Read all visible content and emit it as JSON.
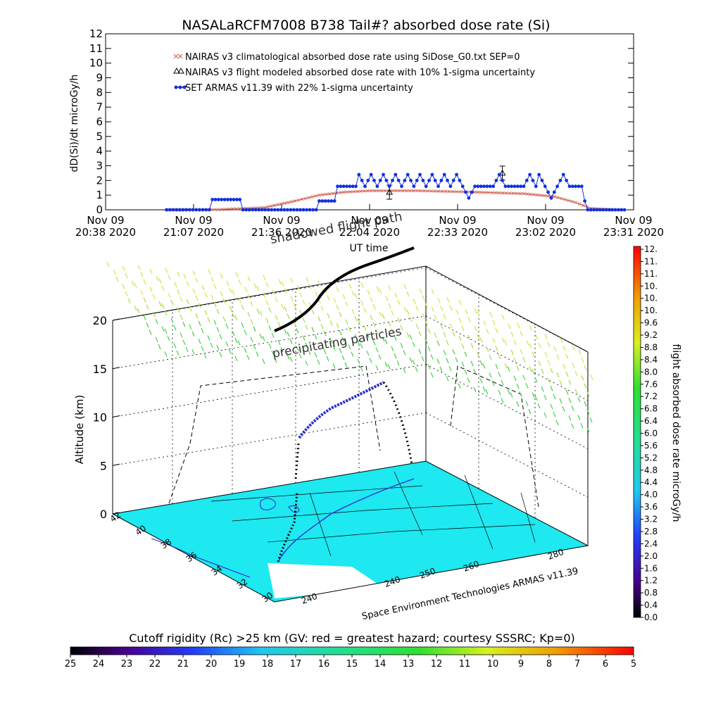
{
  "chart_data": [
    {
      "type": "line",
      "title": "NASALaRCFM7008  B738 Tail#? absorbed dose rate (Si)",
      "xlabel": "UT time",
      "ylabel": "dD(Si)/dt microGy/h",
      "ylim": [
        0,
        12
      ],
      "yticks": [
        "0",
        "1",
        "2",
        "3",
        "4",
        "5",
        "6",
        "7",
        "8",
        "9",
        "10",
        "11",
        "12"
      ],
      "xticks": [
        {
          "date": "Nov 09",
          "time": "20:38 2020"
        },
        {
          "date": "Nov 09",
          "time": "21:07 2020"
        },
        {
          "date": "Nov 09",
          "time": "21:36 2020"
        },
        {
          "date": "Nov 09",
          "time": "22:04 2020"
        },
        {
          "date": "Nov 09",
          "time": "22:33 2020"
        },
        {
          "date": "Nov 09",
          "time": "23:02 2020"
        },
        {
          "date": "Nov 09",
          "time": "23:31 2020"
        }
      ],
      "legend": [
        {
          "marker": "x",
          "color": "#d06050",
          "text": "NAIRAS v3 climatological absorbed dose rate using SiDose_G0.txt SEP=0"
        },
        {
          "marker": "triangle",
          "color": "#000000",
          "text": "NAIRAS v3 flight modeled absorbed dose rate with 10% 1-sigma uncertainty"
        },
        {
          "marker": "dot",
          "color": "#1030e0",
          "text": "SET ARMAS v11.39 with 22% 1-sigma uncertainty"
        }
      ],
      "series": [
        {
          "name": "NAIRAS v3 climatological absorbed dose rate using SiDose_G0.txt SEP=0",
          "color": "#d06050",
          "points": [
            [
              "20:58",
              0.0
            ],
            [
              "21:15",
              0.02
            ],
            [
              "21:30",
              0.15
            ],
            [
              "21:40",
              0.6
            ],
            [
              "21:48",
              1.0
            ],
            [
              "21:56",
              1.2
            ],
            [
              "22:05",
              1.3
            ],
            [
              "22:20",
              1.3
            ],
            [
              "22:40",
              1.2
            ],
            [
              "22:55",
              1.1
            ],
            [
              "23:05",
              0.9
            ],
            [
              "23:12",
              0.5
            ],
            [
              "23:17",
              0.1
            ],
            [
              "23:25",
              0.0
            ]
          ]
        },
        {
          "name": "NAIRAS v3 flight modeled absorbed dose rate with 10% 1-sigma uncertainty",
          "color": "#000000",
          "points": [
            [
              "22:11",
              1.2
            ],
            [
              "22:48",
              2.5
            ]
          ]
        },
        {
          "name": "SET ARMAS v11.39 with 22% 1-sigma uncertainty",
          "color": "#1030e0",
          "points": [
            [
              "20:58",
              0.0
            ],
            [
              "21:12",
              0.0
            ],
            [
              "21:13",
              0.7
            ],
            [
              "21:22",
              0.7
            ],
            [
              "21:23",
              0.0
            ],
            [
              "21:47",
              0.0
            ],
            [
              "21:48",
              0.6
            ],
            [
              "21:53",
              0.6
            ],
            [
              "21:54",
              1.6
            ],
            [
              "22:00",
              1.6
            ],
            [
              "22:01",
              2.4
            ],
            [
              "22:03",
              1.6
            ],
            [
              "22:05",
              2.4
            ],
            [
              "22:07",
              1.6
            ],
            [
              "22:09",
              2.4
            ],
            [
              "22:11",
              1.6
            ],
            [
              "22:13",
              2.4
            ],
            [
              "22:15",
              1.6
            ],
            [
              "22:17",
              2.4
            ],
            [
              "22:19",
              1.6
            ],
            [
              "22:21",
              2.4
            ],
            [
              "22:23",
              1.6
            ],
            [
              "22:25",
              2.4
            ],
            [
              "22:27",
              1.6
            ],
            [
              "22:29",
              2.4
            ],
            [
              "22:31",
              1.6
            ],
            [
              "22:33",
              2.4
            ],
            [
              "22:35",
              1.6
            ],
            [
              "22:37",
              0.8
            ],
            [
              "22:39",
              1.6
            ],
            [
              "22:45",
              1.6
            ],
            [
              "22:47",
              2.4
            ],
            [
              "22:49",
              1.6
            ],
            [
              "22:55",
              1.6
            ],
            [
              "22:57",
              2.4
            ],
            [
              "22:59",
              1.6
            ],
            [
              "23:00",
              2.4
            ],
            [
              "23:02",
              1.6
            ],
            [
              "23:04",
              0.8
            ],
            [
              "23:06",
              1.6
            ],
            [
              "23:08",
              2.4
            ],
            [
              "23:10",
              1.6
            ],
            [
              "23:14",
              1.6
            ],
            [
              "23:15",
              0.6
            ],
            [
              "23:16",
              0.0
            ],
            [
              "23:29",
              0.0
            ]
          ]
        }
      ]
    },
    {
      "type": "scatter",
      "ylabel": "Altitude (km)",
      "zticks": [
        "0",
        "5",
        "10",
        "15",
        "20"
      ],
      "lat_ticks": [
        "42",
        "40",
        "38",
        "36",
        "34",
        "32",
        "30"
      ],
      "lon_ticks": [
        "240",
        "240",
        "250",
        "260",
        "280"
      ],
      "annotations": [
        "shadowed flight path",
        "precipitating particles"
      ],
      "credit": "Space Environment Technologies ARMAS v11.39",
      "colorbar": {
        "label": "flight absorbed dose rate microGy/h",
        "ticks": [
          "12.",
          "11.",
          "11.",
          "10.",
          "10.",
          "10.",
          "9.6",
          "9.2",
          "8.8",
          "8.4",
          "8.0",
          "7.6",
          "7.2",
          "6.8",
          "6.4",
          "6.0",
          "5.6",
          "5.2",
          "4.8",
          "4.4",
          "4.0",
          "3.6",
          "3.2",
          "2.8",
          "2.4",
          "2.0",
          "1.6",
          "1.2",
          "0.8",
          "0.4",
          "0.0"
        ]
      }
    },
    {
      "type": "heatmap",
      "title": "Cutoff rigidity (Rc) >25 km (GV: red = greatest hazard; courtesy SSSRC; Kp=0)",
      "ticks": [
        "25",
        "24",
        "23",
        "22",
        "21",
        "20",
        "19",
        "18",
        "17",
        "16",
        "15",
        "14",
        "13",
        "12",
        "11",
        "10",
        "9",
        "8",
        "7",
        "6",
        "5"
      ]
    }
  ]
}
